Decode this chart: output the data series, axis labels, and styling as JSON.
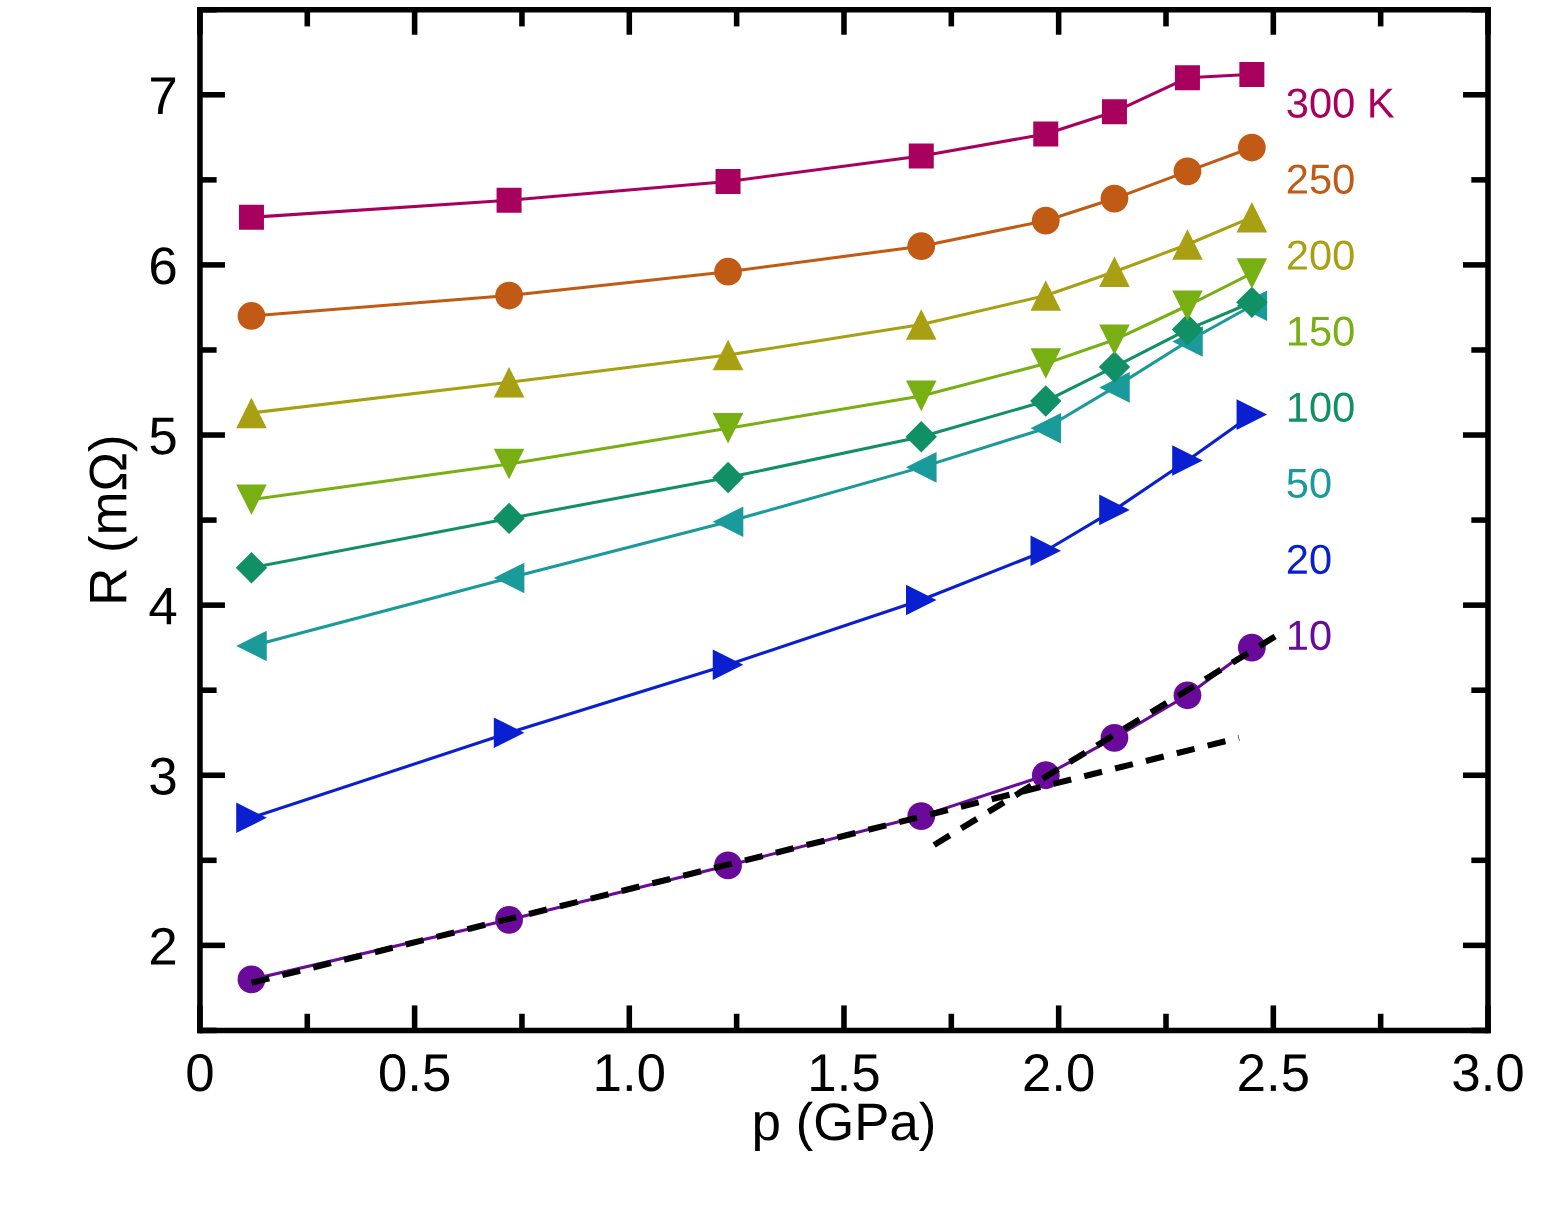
{
  "chart_data": {
    "type": "line",
    "xlabel": "p (GPa)",
    "ylabel": "R (mΩ)",
    "x": [
      0.12,
      0.72,
      1.23,
      1.68,
      1.97,
      2.13,
      2.3,
      2.45
    ],
    "xlim": [
      0,
      3.0
    ],
    "xticks": [
      {
        "value": 0,
        "label": "0"
      },
      {
        "value": 0.5,
        "label": "0.5"
      },
      {
        "value": 1.0,
        "label": "1.0"
      },
      {
        "value": 1.5,
        "label": "1.5"
      },
      {
        "value": 2.0,
        "label": "2.0"
      },
      {
        "value": 2.5,
        "label": "2.5"
      },
      {
        "value": 3.0,
        "label": "3.0"
      }
    ],
    "ylim": [
      1.5,
      7.5
    ],
    "yticks": [
      2,
      3,
      4,
      5,
      6,
      7
    ],
    "grid": false,
    "legend": false,
    "series": [
      {
        "name": "300 K",
        "color": "#a8005f",
        "marker": "square",
        "values": [
          6.28,
          6.38,
          6.49,
          6.64,
          6.77,
          6.9,
          7.1,
          7.12
        ]
      },
      {
        "name": "250",
        "color": "#c05a14",
        "marker": "circle",
        "values": [
          5.7,
          5.82,
          5.96,
          6.11,
          6.26,
          6.39,
          6.55,
          6.69
        ]
      },
      {
        "name": "200",
        "color": "#a8a012",
        "marker": "triangle",
        "values": [
          5.13,
          5.31,
          5.47,
          5.65,
          5.82,
          5.96,
          6.12,
          6.28
        ]
      },
      {
        "name": "150",
        "color": "#78b014",
        "marker": "triangle-down",
        "values": [
          4.62,
          4.83,
          5.04,
          5.23,
          5.42,
          5.56,
          5.76,
          5.95
        ]
      },
      {
        "name": "100",
        "color": "#109064",
        "marker": "diamond",
        "values": [
          4.22,
          4.51,
          4.75,
          4.99,
          5.2,
          5.4,
          5.62,
          5.78
        ]
      },
      {
        "name": "50",
        "color": "#1a9a9a",
        "marker": "triangle-left",
        "values": [
          3.76,
          4.16,
          4.49,
          4.81,
          5.04,
          5.28,
          5.55,
          5.76
        ]
      },
      {
        "name": "20",
        "color": "#0a20d0",
        "marker": "triangle-right",
        "values": [
          2.75,
          3.25,
          3.65,
          4.03,
          4.32,
          4.56,
          4.85,
          5.12
        ]
      },
      {
        "name": "10",
        "color": "#6a0a9a",
        "marker": "circle",
        "values": [
          1.8,
          2.15,
          2.47,
          2.76,
          3.0,
          3.22,
          3.47,
          3.75
        ]
      },
      {
        "type": "line",
        "color": "#000000",
        "marker": "none",
        "line_style": "dashed",
        "x": [
          0.12,
          2.42
        ],
        "values": [
          1.78,
          3.22
        ]
      },
      {
        "type": "line",
        "color": "#000000",
        "marker": "none",
        "line_style": "dashed",
        "x": [
          1.71,
          2.52
        ],
        "values": [
          2.59,
          3.84
        ]
      }
    ]
  }
}
